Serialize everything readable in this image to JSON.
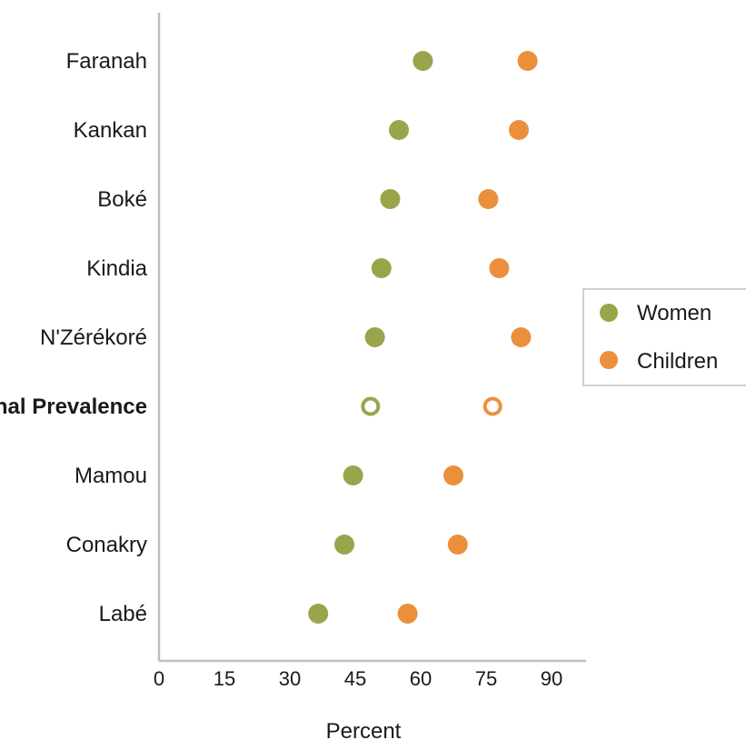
{
  "chart_data": {
    "type": "scatter",
    "title": "",
    "xlabel": "Percent",
    "ylabel": "",
    "xlim": [
      0,
      97
    ],
    "xticks": [
      0,
      15,
      30,
      45,
      60,
      75,
      90
    ],
    "xtick_labels": [
      "0",
      "15",
      "30",
      "45",
      "60",
      "75",
      "90"
    ],
    "grid": false,
    "legend_position": "right",
    "categories": [
      "Faranah",
      "Kankan",
      "Boké",
      "Kindia",
      "N'Zérékoré",
      "National Prevalence",
      "Mamou",
      "Conakry",
      "Labé"
    ],
    "highlight_category": "National Prevalence",
    "series": [
      {
        "name": "Women",
        "color": "#9aa54b",
        "values": [
          60.5,
          55,
          53,
          51,
          49.5,
          48.5,
          44.5,
          42.5,
          36.5
        ]
      },
      {
        "name": "Children",
        "color": "#ec8f3d",
        "values": [
          84.5,
          82.5,
          75.5,
          78,
          83,
          76.5,
          67.5,
          68.5,
          57
        ]
      }
    ]
  }
}
